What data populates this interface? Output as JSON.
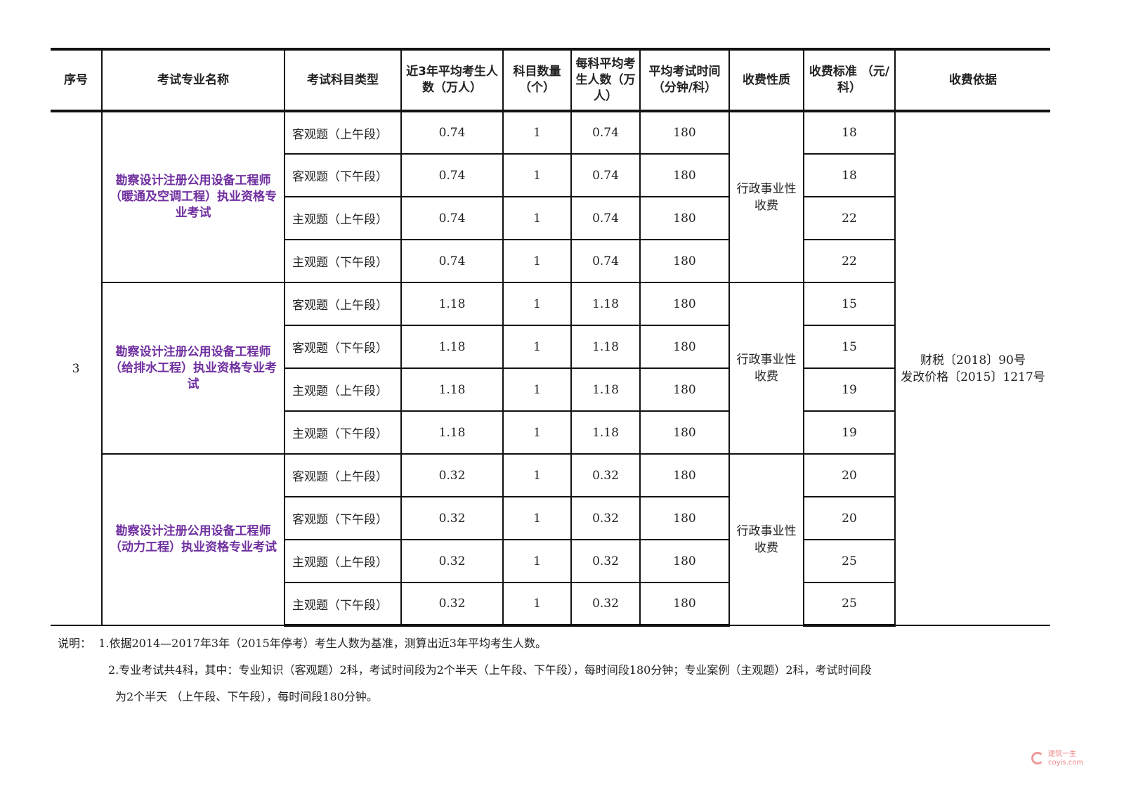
{
  "headers": [
    "序号",
    "考试专业名称",
    "考试科目类型",
    "近3年平均考生人数（万人）",
    "科目数量（个）",
    "每科平均考生人数（万人）",
    "平均考试时间（分钟/科）",
    "收费性质",
    "收费标准 （元/科）",
    "收费依据"
  ],
  "serial": "3",
  "basis": [
    "财税〔2018〕90号",
    "发改价格〔2015〕1217号"
  ],
  "groups": [
    {
      "name": "勘察设计注册公用设备工程师（暖通及空调工程）执业资格专业考试",
      "nature": "行政事业性收费",
      "rows": [
        {
          "type": "客观题（上午段）",
          "avg3": "0.74",
          "count": "1",
          "per": "0.74",
          "time": "180",
          "fee": "18"
        },
        {
          "type": "客观题（下午段）",
          "avg3": "0.74",
          "count": "1",
          "per": "0.74",
          "time": "180",
          "fee": "18"
        },
        {
          "type": "主观题（上午段）",
          "avg3": "0.74",
          "count": "1",
          "per": "0.74",
          "time": "180",
          "fee": "22"
        },
        {
          "type": "主观题（下午段）",
          "avg3": "0.74",
          "count": "1",
          "per": "0.74",
          "time": "180",
          "fee": "22"
        }
      ]
    },
    {
      "name": "勘察设计注册公用设备工程师（给排水工程）执业资格专业考试",
      "nature": "行政事业性收费",
      "rows": [
        {
          "type": "客观题（上午段）",
          "avg3": "1.18",
          "count": "1",
          "per": "1.18",
          "time": "180",
          "fee": "15"
        },
        {
          "type": "客观题（下午段）",
          "avg3": "1.18",
          "count": "1",
          "per": "1.18",
          "time": "180",
          "fee": "15"
        },
        {
          "type": "主观题（上午段）",
          "avg3": "1.18",
          "count": "1",
          "per": "1.18",
          "time": "180",
          "fee": "19"
        },
        {
          "type": "主观题（下午段）",
          "avg3": "1.18",
          "count": "1",
          "per": "1.18",
          "time": "180",
          "fee": "19"
        }
      ]
    },
    {
      "name": "勘察设计注册公用设备工程师（动力工程）执业资格专业考试",
      "nature": "行政事业性收费",
      "rows": [
        {
          "type": "客观题（上午段）",
          "avg3": "0.32",
          "count": "1",
          "per": "0.32",
          "time": "180",
          "fee": "20"
        },
        {
          "type": "客观题（下午段）",
          "avg3": "0.32",
          "count": "1",
          "per": "0.32",
          "time": "180",
          "fee": "20"
        },
        {
          "type": "主观题（上午段）",
          "avg3": "0.32",
          "count": "1",
          "per": "0.32",
          "time": "180",
          "fee": "25"
        },
        {
          "type": "主观题（下午段）",
          "avg3": "0.32",
          "count": "1",
          "per": "0.32",
          "time": "180",
          "fee": "25"
        }
      ]
    }
  ],
  "notes": {
    "label": "说明：",
    "line1": "1.依据2014—2017年3年（2015年停考）考生人数为基准，测算出近3年平均考生人数。",
    "line2": "2.专业考试共4科，其中：专业知识（客观题）2科，考试时间段为2个半天（上午段、下午段），每时间段180分钟；专业案例（主观题）2科，考试时间段",
    "line3": "为2个半天 （上午段、下午段），每时间段180分钟。"
  },
  "watermark": {
    "text": "建筑一生",
    "url": "coyis.com"
  },
  "colors": {
    "name_text": "#7030a0",
    "border": "#111111"
  }
}
